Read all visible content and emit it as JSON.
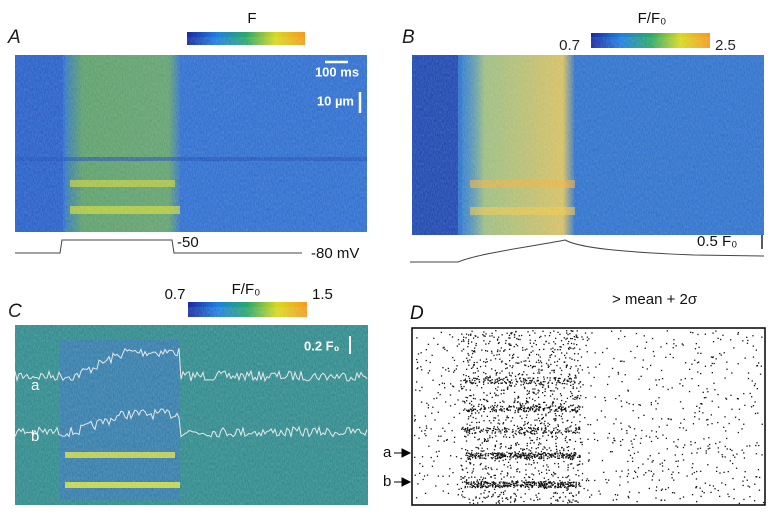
{
  "panel_a": {
    "label": "A",
    "colorbar_label": "F",
    "time_scale": "100 ms",
    "space_scale": "10 µm",
    "step_label": "-50",
    "holding_label": "-80 mV"
  },
  "panel_b": {
    "label": "B",
    "colorbar_min": "0.7",
    "colorbar_label": "F/F₀",
    "colorbar_max": "2.5",
    "trace_scale": "0.5 F₀"
  },
  "panel_c": {
    "label": "C",
    "colorbar_min": "0.7",
    "colorbar_label": "F/F₀",
    "colorbar_max": "1.5",
    "trace_scale": "0.2 F₀",
    "trace_labels": [
      "a",
      "b"
    ]
  },
  "panel_d": {
    "label": "D",
    "threshold": "> mean + 2σ",
    "row_labels": [
      "a",
      "b"
    ]
  }
}
